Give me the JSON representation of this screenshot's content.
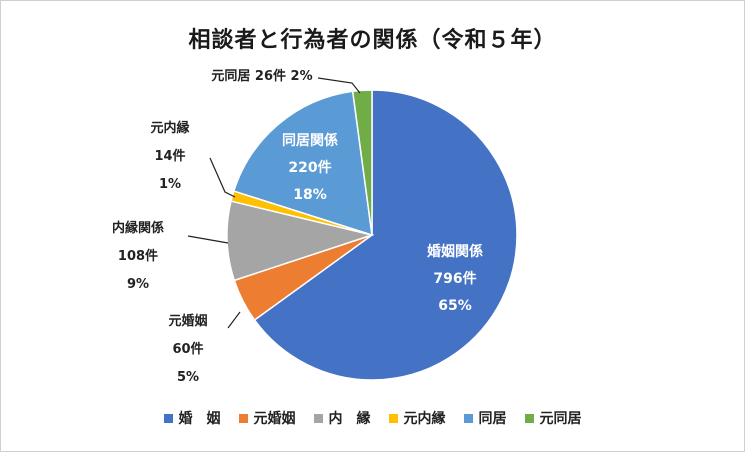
{
  "chart_data": {
    "type": "pie",
    "title": "相談者と行為者の関係（令和５年）",
    "unit": "件",
    "slices": [
      {
        "name": "婚　姻",
        "label_name": "婚姻関係",
        "count": "796件",
        "pct": "65%",
        "value": 796,
        "color": "#4472C4"
      },
      {
        "name": "元婚姻",
        "label_name": "元婚姻",
        "count": "60件",
        "pct": "5%",
        "value": 60,
        "color": "#ED7D31"
      },
      {
        "name": "内　縁",
        "label_name": "内縁関係",
        "count": "108件",
        "pct": "9%",
        "value": 108,
        "color": "#A5A5A5"
      },
      {
        "name": "元内縁",
        "label_name": "元内縁",
        "count": "14件",
        "pct": "1%",
        "value": 14,
        "color": "#FFC000"
      },
      {
        "name": "同居",
        "label_name": "同居関係",
        "count": "220件",
        "pct": "18%",
        "value": 220,
        "color": "#5B9BD5"
      },
      {
        "name": "元同居",
        "label_name": "元同居",
        "count": "26件",
        "pct": "2%",
        "value": 26,
        "color": "#70AD47"
      }
    ],
    "legend_position": "bottom"
  }
}
